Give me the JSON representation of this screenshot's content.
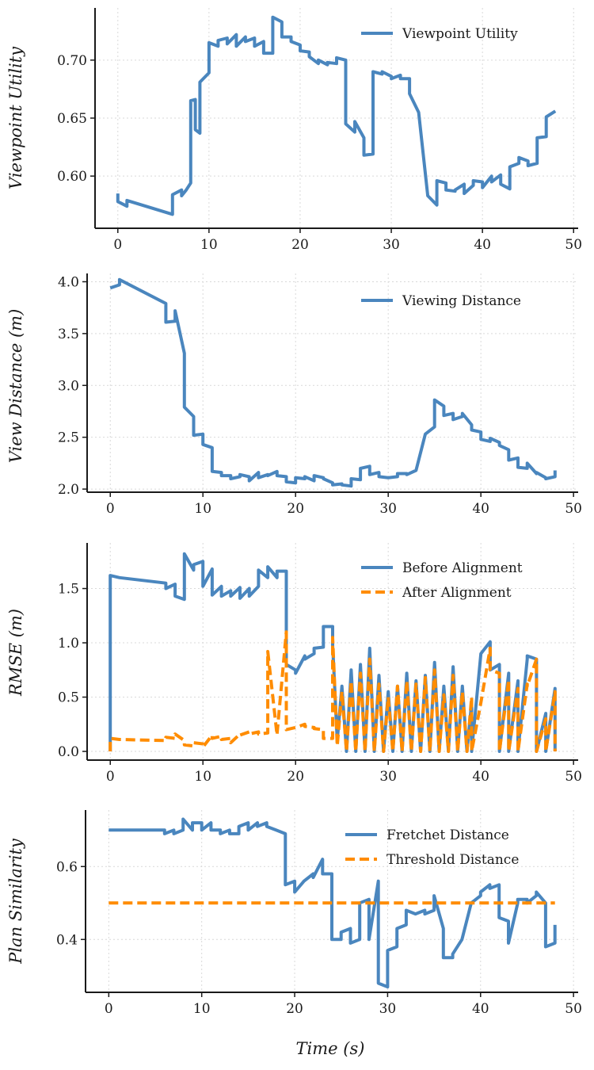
{
  "figure": {
    "xlabel": "Time (s)",
    "colors": {
      "blue": "#4a86be",
      "orange": "#ff8c00",
      "grid": "#d9d9d9",
      "axis": "#1a1a1a"
    }
  },
  "chart_data": [
    {
      "type": "line",
      "title": "",
      "xlabel": "",
      "ylabel": "Viewpoint Utility",
      "xlim": [
        -2.5,
        50.5
      ],
      "ylim": [
        0.555,
        0.745
      ],
      "xticks": [
        0,
        10,
        20,
        30,
        40,
        50
      ],
      "xtick_labels": [
        "0",
        "10",
        "20",
        "30",
        "40",
        "50"
      ],
      "yticks": [
        0.6,
        0.65,
        0.7
      ],
      "ytick_labels": [
        "0.60",
        "0.65",
        "0.70"
      ],
      "legend": "top-right",
      "grid": true,
      "series": [
        {
          "name": "Viewpoint Utility",
          "color": "#4a86be",
          "dash": "solid",
          "x": [
            0,
            0,
            1,
            1,
            6,
            6,
            7,
            7,
            7.5,
            7.5,
            8,
            8,
            8.5,
            8.5,
            9,
            9,
            10,
            10,
            11,
            11,
            12,
            12,
            13,
            13,
            14,
            14,
            15,
            15,
            16,
            16,
            17,
            17,
            18,
            18,
            19,
            19,
            20,
            20,
            21,
            21,
            22,
            22,
            23,
            23,
            24,
            24,
            25,
            25,
            26,
            26,
            27,
            27,
            28,
            28,
            29,
            29,
            30,
            30,
            31,
            31,
            32,
            32,
            33,
            34,
            35,
            35,
            36,
            36,
            37,
            37,
            38,
            38,
            39,
            39,
            40,
            40,
            41,
            41,
            42,
            42,
            43,
            43,
            44,
            44,
            45,
            45,
            46,
            46,
            47,
            47,
            48
          ],
          "y": [
            0.585,
            0.578,
            0.574,
            0.579,
            0.567,
            0.584,
            0.588,
            0.583,
            0.588,
            0.588,
            0.594,
            0.665,
            0.666,
            0.64,
            0.637,
            0.681,
            0.689,
            0.715,
            0.712,
            0.717,
            0.719,
            0.714,
            0.722,
            0.712,
            0.72,
            0.716,
            0.719,
            0.712,
            0.716,
            0.706,
            0.706,
            0.737,
            0.733,
            0.72,
            0.72,
            0.716,
            0.713,
            0.708,
            0.707,
            0.703,
            0.697,
            0.7,
            0.696,
            0.698,
            0.697,
            0.702,
            0.7,
            0.645,
            0.638,
            0.647,
            0.633,
            0.618,
            0.619,
            0.69,
            0.688,
            0.69,
            0.686,
            0.684,
            0.687,
            0.684,
            0.684,
            0.671,
            0.655,
            0.583,
            0.575,
            0.596,
            0.594,
            0.588,
            0.587,
            0.588,
            0.593,
            0.585,
            0.592,
            0.596,
            0.595,
            0.59,
            0.6,
            0.595,
            0.601,
            0.593,
            0.589,
            0.608,
            0.611,
            0.616,
            0.613,
            0.609,
            0.611,
            0.633,
            0.634,
            0.651,
            0.656
          ]
        }
      ]
    },
    {
      "type": "line",
      "title": "",
      "xlabel": "",
      "ylabel": "View Distance (m)",
      "xlim": [
        -2.5,
        50.5
      ],
      "ylim": [
        1.97,
        4.08
      ],
      "xticks": [
        0,
        10,
        20,
        30,
        40,
        50
      ],
      "xtick_labels": [
        "0",
        "10",
        "20",
        "30",
        "40",
        "50"
      ],
      "yticks": [
        2.0,
        2.5,
        3.0,
        3.5,
        4.0
      ],
      "ytick_labels": [
        "2.0",
        "2.5",
        "3.0",
        "3.5",
        "4.0"
      ],
      "legend": "top-right",
      "grid": true,
      "series": [
        {
          "name": "Viewing Distance",
          "color": "#4a86be",
          "dash": "solid",
          "x": [
            0,
            1,
            1,
            6,
            6,
            7,
            7,
            8,
            8,
            9,
            9,
            10,
            10,
            11,
            11,
            12,
            12,
            13,
            13,
            14,
            14,
            15,
            15,
            16,
            16,
            17,
            17,
            18,
            18,
            19,
            19,
            20,
            20,
            21,
            21,
            22,
            22,
            23,
            23,
            24,
            24,
            25,
            25,
            26,
            26,
            27,
            27,
            28,
            28,
            29,
            29,
            30,
            30,
            31,
            31,
            32,
            32,
            33,
            34,
            35,
            35,
            36,
            36,
            37,
            37,
            38,
            38,
            39,
            39,
            40,
            40,
            41,
            41,
            42,
            42,
            43,
            43,
            44,
            44,
            45,
            45,
            46,
            46,
            47,
            47,
            48,
            48
          ],
          "y": [
            3.94,
            3.97,
            4.02,
            3.79,
            3.61,
            3.62,
            3.72,
            3.31,
            2.79,
            2.7,
            2.52,
            2.53,
            2.43,
            2.4,
            2.17,
            2.16,
            2.13,
            2.13,
            2.1,
            2.12,
            2.14,
            2.12,
            2.08,
            2.16,
            2.11,
            2.14,
            2.13,
            2.17,
            2.13,
            2.12,
            2.07,
            2.06,
            2.11,
            2.1,
            2.12,
            2.08,
            2.13,
            2.11,
            2.1,
            2.06,
            2.04,
            2.05,
            2.04,
            2.03,
            2.1,
            2.09,
            2.2,
            2.22,
            2.14,
            2.16,
            2.12,
            2.11,
            2.11,
            2.12,
            2.15,
            2.15,
            2.14,
            2.18,
            2.53,
            2.6,
            2.86,
            2.8,
            2.71,
            2.73,
            2.67,
            2.7,
            2.73,
            2.62,
            2.57,
            2.55,
            2.48,
            2.46,
            2.49,
            2.45,
            2.42,
            2.38,
            2.28,
            2.3,
            2.21,
            2.2,
            2.25,
            2.15,
            2.16,
            2.11,
            2.1,
            2.12,
            2.18
          ]
        }
      ]
    },
    {
      "type": "line",
      "title": "",
      "xlabel": "",
      "ylabel": "RMSE (m)",
      "xlim": [
        -2.5,
        50.5
      ],
      "ylim": [
        -0.08,
        1.92
      ],
      "xticks": [
        0,
        10,
        20,
        30,
        40,
        50
      ],
      "xtick_labels": [
        "0",
        "10",
        "20",
        "30",
        "40",
        "50"
      ],
      "yticks": [
        0.0,
        0.5,
        1.0,
        1.5
      ],
      "ytick_labels": [
        "0.0",
        "0.5",
        "1.0",
        "1.5"
      ],
      "legend": "top-right",
      "grid": true,
      "series": [
        {
          "name": "Before Alignment",
          "color": "#4a86be",
          "dash": "solid",
          "x": [
            0,
            0,
            1,
            6,
            6,
            7,
            7,
            8,
            8,
            9,
            9,
            10,
            10,
            11,
            11,
            12,
            12,
            13,
            13,
            14,
            14,
            15,
            15,
            16,
            16,
            17,
            17,
            18,
            18,
            19,
            19,
            20,
            20,
            21,
            21,
            22,
            22,
            23,
            23,
            24,
            24,
            24.5,
            25,
            25.5,
            26,
            26.5,
            27,
            27.5,
            28,
            28.5,
            29,
            29.5,
            30,
            30.5,
            31,
            31.5,
            32,
            32.5,
            33,
            33.5,
            34,
            34.5,
            35,
            35.5,
            36,
            36.5,
            37,
            37.5,
            38,
            38.5,
            39,
            39,
            40,
            41,
            41,
            42,
            42,
            43,
            43,
            44,
            44,
            45,
            45,
            46,
            46,
            47,
            47,
            48,
            48
          ],
          "y": [
            0.0,
            1.62,
            1.6,
            1.55,
            1.5,
            1.54,
            1.43,
            1.4,
            1.82,
            1.67,
            1.72,
            1.75,
            1.52,
            1.68,
            1.44,
            1.52,
            1.43,
            1.48,
            1.43,
            1.51,
            1.41,
            1.5,
            1.43,
            1.52,
            1.67,
            1.6,
            1.7,
            1.6,
            1.66,
            1.66,
            0.8,
            0.75,
            0.72,
            0.88,
            0.85,
            0.9,
            0.95,
            0.96,
            1.15,
            1.15,
            0.98,
            0.1,
            0.6,
            0.0,
            0.75,
            0.0,
            0.8,
            0.0,
            0.95,
            0.0,
            0.7,
            0.0,
            0.55,
            0.0,
            0.6,
            0.0,
            0.72,
            0.0,
            0.65,
            0.0,
            0.7,
            0.0,
            0.82,
            0.0,
            0.6,
            0.0,
            0.78,
            0.0,
            0.6,
            0.0,
            0.45,
            0.0,
            0.9,
            1.01,
            0.75,
            0.8,
            0.0,
            0.72,
            0.0,
            0.65,
            0.0,
            0.85,
            0.88,
            0.85,
            0.0,
            0.35,
            0.0,
            0.58,
            0.0
          ]
        },
        {
          "name": "After Alignment",
          "color": "#ff8c00",
          "dash": "dashed",
          "x": [
            0,
            0,
            1,
            6,
            6,
            7,
            7,
            8,
            8,
            9,
            9,
            10,
            10,
            11,
            11,
            12,
            12,
            13,
            13,
            14,
            14,
            15,
            15,
            16,
            16,
            17,
            17,
            18,
            18,
            19,
            19,
            20,
            20,
            21,
            21,
            22,
            22,
            23,
            23,
            24,
            24,
            24.5,
            25,
            25.5,
            26,
            26.5,
            27,
            27.5,
            28,
            28.5,
            29,
            29.5,
            30,
            30.5,
            31,
            31.5,
            32,
            32.5,
            33,
            33.5,
            34,
            34.5,
            35,
            35.5,
            36,
            36.5,
            37,
            37.5,
            38,
            38.5,
            39,
            39,
            40,
            41,
            41,
            42,
            42,
            43,
            43,
            44,
            44,
            45,
            45,
            46,
            46,
            47,
            47,
            48,
            48
          ],
          "y": [
            0.0,
            0.12,
            0.11,
            0.1,
            0.13,
            0.12,
            0.16,
            0.1,
            0.06,
            0.05,
            0.08,
            0.07,
            0.04,
            0.15,
            0.12,
            0.14,
            0.11,
            0.12,
            0.08,
            0.16,
            0.15,
            0.18,
            0.16,
            0.18,
            0.16,
            0.17,
            0.92,
            0.15,
            0.16,
            1.1,
            0.2,
            0.22,
            0.22,
            0.25,
            0.23,
            0.22,
            0.21,
            0.2,
            0.12,
            0.12,
            1.05,
            0.05,
            0.55,
            0.0,
            0.65,
            0.0,
            0.72,
            0.0,
            0.85,
            0.0,
            0.62,
            0.0,
            0.5,
            0.0,
            0.6,
            0.0,
            0.65,
            0.0,
            0.62,
            0.0,
            0.68,
            0.0,
            0.75,
            0.0,
            0.52,
            0.0,
            0.7,
            0.0,
            0.55,
            0.0,
            0.5,
            0.0,
            0.45,
            0.95,
            0.75,
            0.72,
            0.0,
            0.66,
            0.0,
            0.58,
            0.0,
            0.62,
            0.6,
            0.85,
            0.0,
            0.3,
            0.0,
            0.55,
            0.0
          ]
        }
      ]
    },
    {
      "type": "line",
      "title": "",
      "xlabel": "Time (s)",
      "ylabel": "Plan Similarity",
      "xlim": [
        -2.5,
        50.5
      ],
      "ylim": [
        0.255,
        0.755
      ],
      "xticks": [
        0,
        10,
        20,
        30,
        40,
        50
      ],
      "xtick_labels": [
        "0",
        "10",
        "20",
        "30",
        "40",
        "50"
      ],
      "yticks": [
        0.4,
        0.6
      ],
      "ytick_labels": [
        "0.4",
        "0.6"
      ],
      "legend": "top-right",
      "grid": true,
      "series": [
        {
          "name": "Fretchet Distance",
          "color": "#4a86be",
          "dash": "solid",
          "x": [
            0,
            1,
            1,
            6,
            6,
            7,
            7,
            8,
            8,
            9,
            9,
            10,
            10,
            11,
            11,
            12,
            12,
            13,
            13,
            14,
            14,
            15,
            15,
            16,
            16,
            17,
            17,
            18,
            18,
            19,
            19,
            20,
            20,
            21,
            21,
            22,
            22,
            23,
            23,
            24,
            24,
            25,
            25,
            26,
            26,
            27,
            27,
            28,
            28,
            29,
            29,
            30,
            30,
            31,
            31,
            32,
            32,
            33,
            33,
            34,
            34,
            35,
            35,
            36,
            36,
            37,
            37,
            38,
            38,
            39,
            39,
            40,
            40,
            41,
            41,
            42,
            42,
            43,
            43,
            44,
            44,
            45,
            45,
            46,
            46,
            47,
            47,
            48,
            48
          ],
          "y": [
            0.7,
            0.7,
            0.7,
            0.7,
            0.69,
            0.7,
            0.69,
            0.7,
            0.73,
            0.7,
            0.72,
            0.72,
            0.7,
            0.72,
            0.7,
            0.7,
            0.69,
            0.7,
            0.69,
            0.69,
            0.71,
            0.72,
            0.7,
            0.72,
            0.71,
            0.72,
            0.71,
            0.7,
            0.7,
            0.69,
            0.55,
            0.56,
            0.53,
            0.56,
            0.56,
            0.58,
            0.57,
            0.62,
            0.58,
            0.58,
            0.4,
            0.4,
            0.42,
            0.43,
            0.39,
            0.4,
            0.5,
            0.51,
            0.4,
            0.56,
            0.28,
            0.27,
            0.37,
            0.38,
            0.43,
            0.44,
            0.48,
            0.47,
            0.47,
            0.48,
            0.47,
            0.48,
            0.52,
            0.43,
            0.35,
            0.35,
            0.36,
            0.4,
            0.4,
            0.5,
            0.5,
            0.52,
            0.53,
            0.55,
            0.54,
            0.55,
            0.46,
            0.45,
            0.39,
            0.5,
            0.51,
            0.51,
            0.5,
            0.52,
            0.53,
            0.5,
            0.38,
            0.39,
            0.44
          ]
        },
        {
          "name": "Threshold Distance",
          "color": "#ff8c00",
          "dash": "dashed",
          "x": [
            0,
            48
          ],
          "y": [
            0.5,
            0.5
          ]
        }
      ]
    }
  ]
}
